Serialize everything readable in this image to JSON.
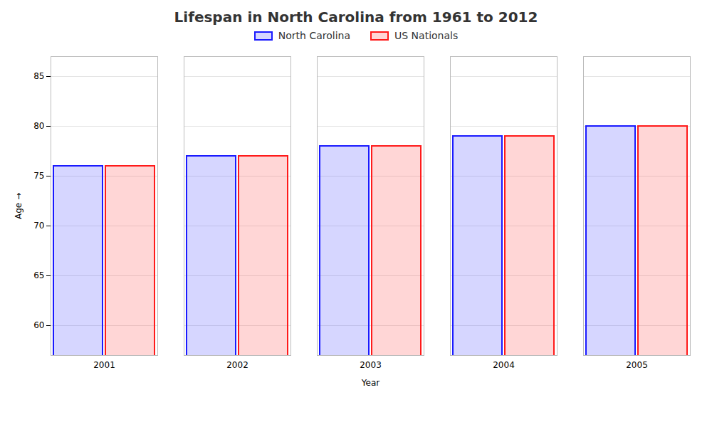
{
  "chart_data": {
    "type": "bar",
    "title": "Lifespan in North Carolina from 1961 to 2012",
    "xlabel": "Year",
    "ylabel": "Age",
    "categories": [
      "2001",
      "2002",
      "2003",
      "2004",
      "2005"
    ],
    "series": [
      {
        "name": "North Carolina",
        "color": "#1a1aff",
        "values": [
          76,
          77,
          78,
          79,
          80
        ]
      },
      {
        "name": "US Nationals",
        "color": "#ff1a1a",
        "values": [
          76,
          77,
          78,
          79,
          80
        ]
      }
    ],
    "ylim": [
      57,
      87
    ],
    "yticks": [
      60,
      65,
      70,
      75,
      80,
      85
    ],
    "grid": true,
    "legend": "upper center"
  }
}
